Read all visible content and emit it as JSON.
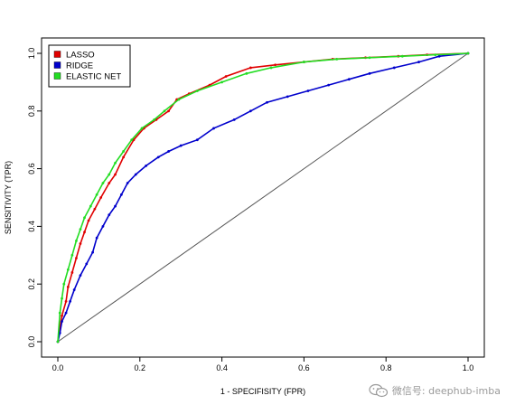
{
  "chart_data": {
    "type": "line",
    "title": "",
    "xlabel": "1 - SPECIFISITY (FPR)",
    "ylabel": "SENSITIVITY (TPR)",
    "xlim": [
      0,
      1
    ],
    "ylim": [
      0,
      1
    ],
    "xticks": [
      "0.0",
      "0.2",
      "0.4",
      "0.6",
      "0.8",
      "1.0"
    ],
    "yticks": [
      "0.0",
      "0.2",
      "0.4",
      "0.6",
      "0.8",
      "1.0"
    ],
    "grid": false,
    "legend_position": "top-left",
    "diagonal_reference": true,
    "series": [
      {
        "name": "LASSO",
        "color": "#e00000",
        "x": [
          0,
          0.005,
          0.01,
          0.02,
          0.025,
          0.035,
          0.045,
          0.055,
          0.065,
          0.075,
          0.09,
          0.105,
          0.125,
          0.14,
          0.16,
          0.185,
          0.21,
          0.24,
          0.27,
          0.29,
          0.32,
          0.37,
          0.41,
          0.47,
          0.53,
          0.6,
          0.67,
          0.75,
          0.83,
          0.9,
          1.0
        ],
        "y": [
          0,
          0.05,
          0.09,
          0.14,
          0.19,
          0.24,
          0.29,
          0.34,
          0.38,
          0.42,
          0.46,
          0.5,
          0.55,
          0.58,
          0.64,
          0.7,
          0.74,
          0.77,
          0.8,
          0.84,
          0.86,
          0.89,
          0.92,
          0.95,
          0.96,
          0.97,
          0.98,
          0.985,
          0.99,
          0.995,
          1.0
        ]
      },
      {
        "name": "RIDGE",
        "color": "#0000cc",
        "x": [
          0,
          0.005,
          0.01,
          0.02,
          0.03,
          0.04,
          0.055,
          0.07,
          0.085,
          0.095,
          0.11,
          0.125,
          0.14,
          0.155,
          0.17,
          0.19,
          0.215,
          0.245,
          0.27,
          0.3,
          0.34,
          0.38,
          0.43,
          0.47,
          0.51,
          0.56,
          0.61,
          0.66,
          0.71,
          0.76,
          0.82,
          0.88,
          0.93,
          1.0
        ],
        "y": [
          0,
          0.03,
          0.07,
          0.1,
          0.14,
          0.18,
          0.23,
          0.27,
          0.31,
          0.36,
          0.4,
          0.44,
          0.47,
          0.51,
          0.55,
          0.58,
          0.61,
          0.64,
          0.66,
          0.68,
          0.7,
          0.74,
          0.77,
          0.8,
          0.83,
          0.85,
          0.87,
          0.89,
          0.91,
          0.93,
          0.95,
          0.97,
          0.99,
          1.0
        ]
      },
      {
        "name": "ELASTIC NET",
        "color": "#22dd22",
        "x": [
          0,
          0.005,
          0.01,
          0.015,
          0.025,
          0.035,
          0.045,
          0.055,
          0.065,
          0.08,
          0.095,
          0.11,
          0.125,
          0.14,
          0.16,
          0.18,
          0.205,
          0.235,
          0.26,
          0.295,
          0.34,
          0.4,
          0.46,
          0.52,
          0.6,
          0.68,
          0.76,
          0.84,
          0.92,
          1.0
        ],
        "y": [
          0,
          0.1,
          0.15,
          0.2,
          0.25,
          0.3,
          0.35,
          0.39,
          0.43,
          0.47,
          0.51,
          0.55,
          0.58,
          0.62,
          0.66,
          0.7,
          0.74,
          0.77,
          0.8,
          0.84,
          0.87,
          0.9,
          0.93,
          0.95,
          0.97,
          0.98,
          0.985,
          0.99,
          0.995,
          1.0
        ]
      }
    ]
  },
  "watermark": {
    "text": "微信号: deephub-imba",
    "icon": "wechat-icon"
  }
}
